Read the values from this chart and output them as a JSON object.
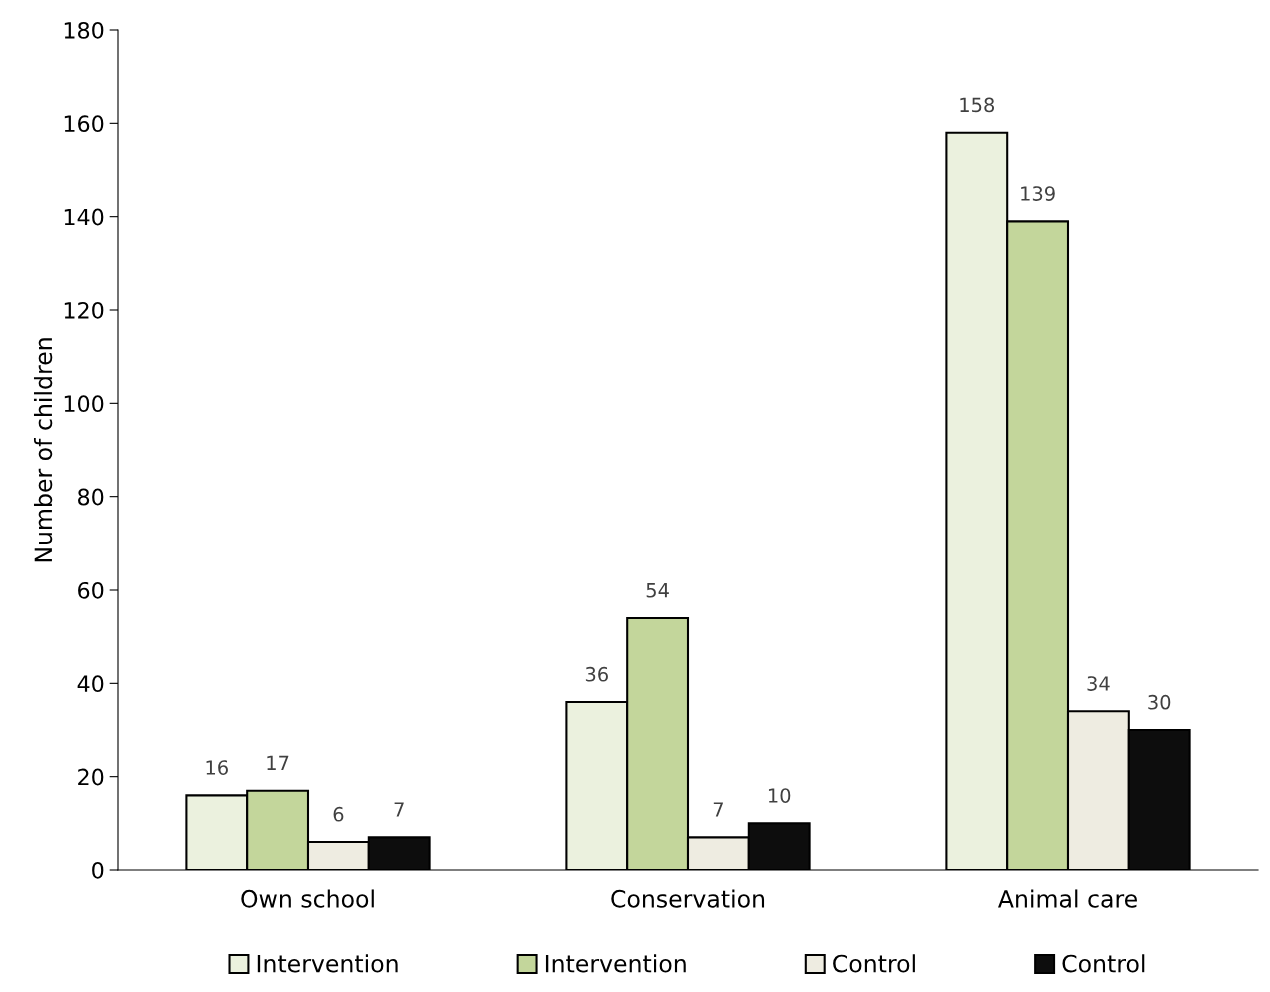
{
  "chart_data": {
    "type": "bar",
    "ylabel": "Number of children",
    "categories": [
      "Own school",
      "Conservation",
      "Animal care"
    ],
    "series": [
      {
        "name": "Intervention",
        "color": "#ebf1de",
        "values": [
          16,
          36,
          158
        ]
      },
      {
        "name": "Intervention",
        "color": "#c3d69b",
        "values": [
          17,
          54,
          139
        ]
      },
      {
        "name": "Control",
        "color": "#eeece1",
        "values": [
          6,
          7,
          34
        ]
      },
      {
        "name": "Control",
        "color": "#0d0d0d",
        "values": [
          7,
          10,
          30
        ]
      }
    ],
    "ylim": [
      0,
      180
    ],
    "yticks": [
      0,
      20,
      40,
      60,
      80,
      100,
      120,
      140,
      160,
      180
    ],
    "data_labels": true,
    "grid": false,
    "legend": "bottom"
  }
}
